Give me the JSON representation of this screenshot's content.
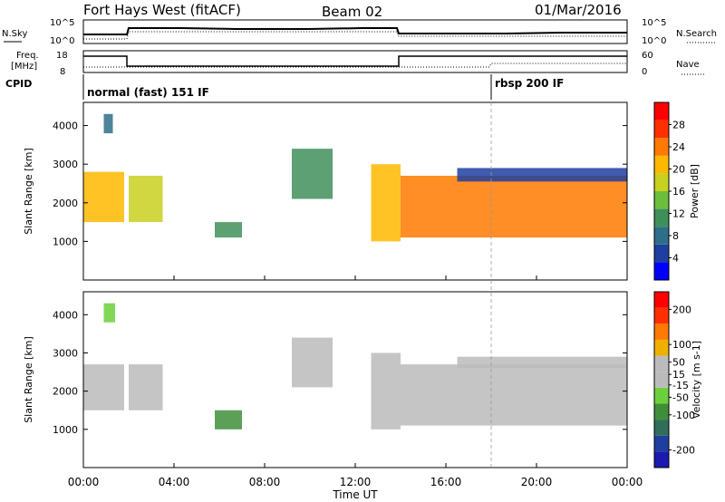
{
  "header": {
    "station": "Fort Hays West (fitACF)",
    "beam": "Beam 02",
    "date": "01/Mar/2016"
  },
  "top_panels": {
    "nsky_label": "N.Sky",
    "nsearch_label": "N.Search",
    "freq_label_1": "Freq.",
    "freq_label_2": "[MHz]",
    "nave_label": "Nave",
    "cpid_label": "CPID",
    "noise_ticks_left": [
      "10^5",
      "10^0"
    ],
    "noise_ticks_right": [
      "10^5",
      "10^0"
    ],
    "freq_ticks": [
      "18",
      "8"
    ],
    "nave_ticks": [
      "60",
      "0"
    ],
    "cpid_modes": [
      {
        "label": "normal (fast) 151 IF",
        "start_hour": 0
      },
      {
        "label": "rbsp 200 IF",
        "start_hour": 18
      }
    ]
  },
  "x_axis": {
    "label": "Time UT",
    "ticks": [
      "00:00",
      "04:00",
      "08:00",
      "12:00",
      "16:00",
      "20:00",
      "00:00"
    ]
  },
  "colors": {
    "power_scale": [
      "#0000ff",
      "#1f3fa0",
      "#2e6e88",
      "#3f8f5a",
      "#6cbf3c",
      "#c8d020",
      "#ffb800",
      "#ff7a00",
      "#ff3000",
      "#ff0000"
    ],
    "velocity_scale": [
      "#1a1ab0",
      "#1f3fa0",
      "#2e6e5a",
      "#3f8f3a",
      "#6cd03c",
      "#bbbbbb",
      "#bbbbbb",
      "#f0b000",
      "#ff7a00",
      "#ff3000",
      "#ff0000"
    ],
    "ground_scatter": "#bbbbbb"
  },
  "chart_data": [
    {
      "type": "heatmap",
      "title": "",
      "xlabel": "Time UT",
      "ylabel": "Slant Range [km]",
      "xlim": [
        0,
        24
      ],
      "ylim": [
        0,
        4600
      ],
      "yticks": [
        1000,
        2000,
        3000,
        4000
      ],
      "colorbar": {
        "label": "Power [dB]",
        "ticks": [
          4,
          8,
          12,
          16,
          20,
          24,
          28
        ],
        "range": [
          0,
          32
        ]
      },
      "regions": [
        {
          "t": [
            0.0,
            1.8
          ],
          "r": [
            1500,
            2800
          ],
          "value": 22
        },
        {
          "t": [
            0.9,
            1.3
          ],
          "r": [
            3800,
            4300
          ],
          "value": 8
        },
        {
          "t": [
            2.0,
            3.5
          ],
          "r": [
            1500,
            2700
          ],
          "value": 16
        },
        {
          "t": [
            5.8,
            7.0
          ],
          "r": [
            1100,
            1500
          ],
          "value": 10
        },
        {
          "t": [
            9.2,
            11.0
          ],
          "r": [
            2100,
            3400
          ],
          "value": 12
        },
        {
          "t": [
            12.7,
            14.0
          ],
          "r": [
            1000,
            3000
          ],
          "value": 20
        },
        {
          "t": [
            14.0,
            24.0
          ],
          "r": [
            1100,
            2700
          ],
          "value": 24
        },
        {
          "t": [
            16.5,
            24.0
          ],
          "r": [
            2550,
            2900
          ],
          "value": 6
        }
      ]
    },
    {
      "type": "heatmap",
      "title": "",
      "xlabel": "Time UT",
      "ylabel": "Slant Range [km]",
      "xlim": [
        0,
        24
      ],
      "ylim": [
        0,
        4600
      ],
      "yticks": [
        1000,
        2000,
        3000,
        4000
      ],
      "colorbar": {
        "label": "Velocity [m s-1]",
        "ticks": [
          200,
          100,
          50,
          15,
          -15,
          -50,
          -100,
          -200
        ],
        "range": [
          -250,
          250
        ]
      },
      "regions": [
        {
          "t": [
            0.0,
            1.8
          ],
          "r": [
            1500,
            2700
          ],
          "value": 0
        },
        {
          "t": [
            0.9,
            1.4
          ],
          "r": [
            3800,
            4300
          ],
          "value": -40
        },
        {
          "t": [
            2.0,
            3.5
          ],
          "r": [
            1500,
            2700
          ],
          "value": 0
        },
        {
          "t": [
            5.8,
            7.0
          ],
          "r": [
            1000,
            1500
          ],
          "value": -70
        },
        {
          "t": [
            9.2,
            11.0
          ],
          "r": [
            2100,
            3400
          ],
          "value": 0
        },
        {
          "t": [
            12.7,
            14.0
          ],
          "r": [
            1000,
            3000
          ],
          "value": 30
        },
        {
          "t": [
            14.0,
            24.0
          ],
          "r": [
            1100,
            2700
          ],
          "value": 0
        },
        {
          "t": [
            16.5,
            24.0
          ],
          "r": [
            2600,
            2900
          ],
          "value": 0
        }
      ]
    }
  ]
}
